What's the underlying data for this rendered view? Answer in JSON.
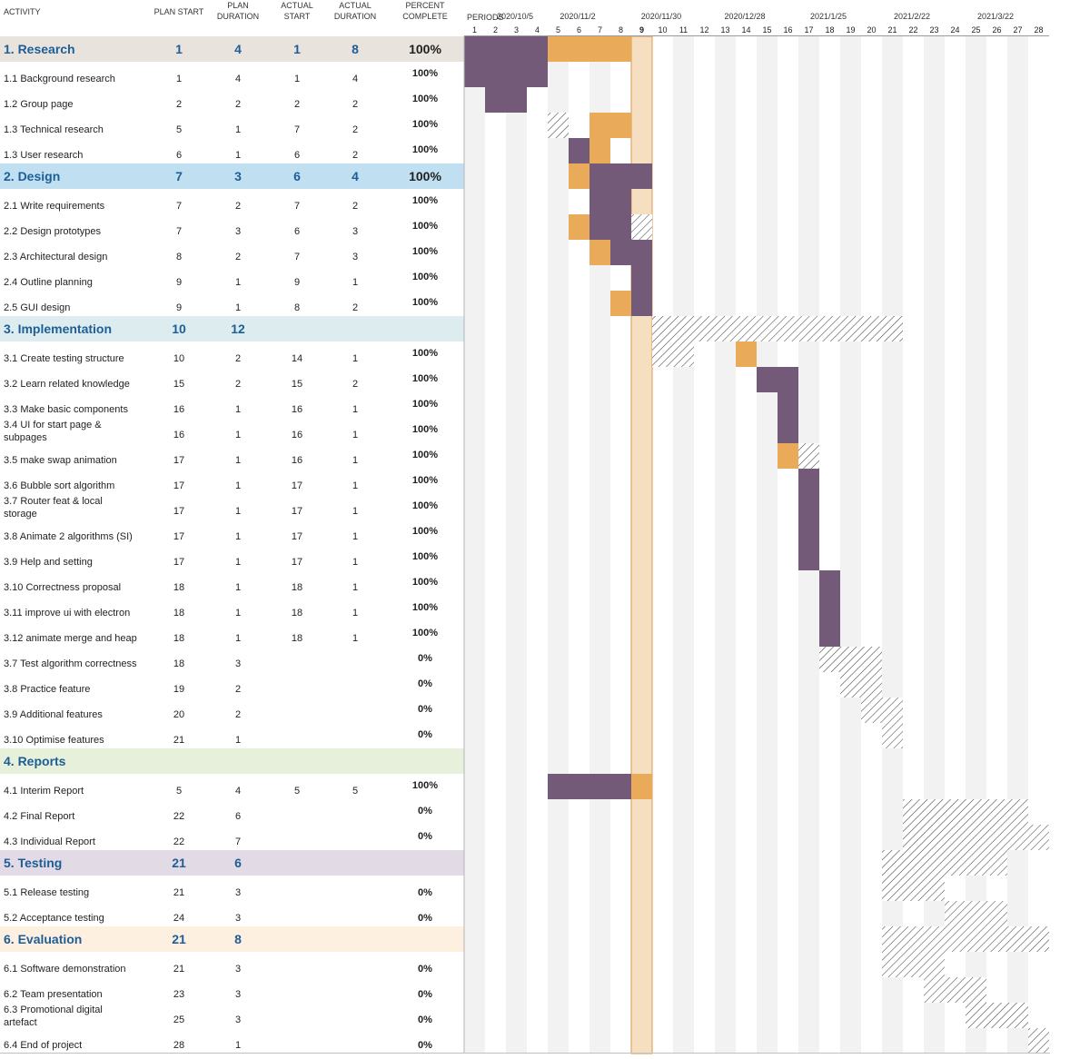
{
  "headers": {
    "activity": "ACTIVITY",
    "plan_start": "PLAN START",
    "plan_duration": [
      "PLAN",
      "DURATION"
    ],
    "actual_start": [
      "ACTUAL",
      "START"
    ],
    "actual_duration": [
      "ACTUAL",
      "DURATION"
    ],
    "percent_complete": [
      "PERCENT",
      "COMPLETE"
    ],
    "periods": "PERIODS"
  },
  "colors": {
    "actual_bar": "#725a78",
    "plan_bar": "#e9aa59",
    "current_period": "#f6dfc1",
    "current_period_border": "#d99a50",
    "stripe": "#f2f2f2",
    "hatch": "#444444"
  },
  "chart_data": {
    "type": "gantt",
    "periods": [
      1,
      2,
      3,
      4,
      5,
      6,
      7,
      8,
      9,
      10,
      11,
      12,
      13,
      14,
      15,
      16,
      17,
      18,
      19,
      20,
      21,
      22,
      23,
      24,
      25,
      26,
      27,
      28
    ],
    "current_period": 9,
    "date_labels": [
      {
        "period": 3,
        "label": "2020/10/5"
      },
      {
        "period": 6,
        "label": "2020/11/2"
      },
      {
        "period": 10,
        "label": "2020/11/30"
      },
      {
        "period": 14,
        "label": "2020/12/28"
      },
      {
        "period": 18,
        "label": "2021/1/25"
      },
      {
        "period": 22,
        "label": "2021/2/22"
      },
      {
        "period": 26,
        "label": "2021/3/22"
      }
    ],
    "rows": [
      {
        "name": "1. Research",
        "group": true,
        "band": "#e8e3dd",
        "plan_start": "1",
        "plan_duration": "4",
        "actual_start": "1",
        "actual_duration": "8",
        "pct": "100%"
      },
      {
        "name": "1.1 Background research",
        "plan_start": "1",
        "plan_duration": "4",
        "actual_start": "1",
        "actual_duration": "4",
        "pct": "100%"
      },
      {
        "name": "1.2 Group page",
        "plan_start": "2",
        "plan_duration": "2",
        "actual_start": "2",
        "actual_duration": "2",
        "pct": "100%"
      },
      {
        "name": "1.3 Technical research",
        "plan_start": "5",
        "plan_duration": "1",
        "actual_start": "7",
        "actual_duration": "2",
        "pct": "100%"
      },
      {
        "name": "1.3 User research",
        "plan_start": "6",
        "plan_duration": "1",
        "actual_start": "6",
        "actual_duration": "2",
        "pct": "100%"
      },
      {
        "name": "2. Design",
        "group": true,
        "band": "#c0e0f2",
        "plan_start": "7",
        "plan_duration": "3",
        "actual_start": "6",
        "actual_duration": "4",
        "pct": "100%"
      },
      {
        "name": "2.1 Write requirements",
        "plan_start": "7",
        "plan_duration": "2",
        "actual_start": "7",
        "actual_duration": "2",
        "pct": "100%"
      },
      {
        "name": "2.2 Design prototypes",
        "plan_start": "7",
        "plan_duration": "3",
        "actual_start": "6",
        "actual_duration": "3",
        "pct": "100%"
      },
      {
        "name": "2.3 Architectural design",
        "plan_start": "8",
        "plan_duration": "2",
        "actual_start": "7",
        "actual_duration": "3",
        "pct": "100%"
      },
      {
        "name": "2.4 Outline planning",
        "plan_start": "9",
        "plan_duration": "1",
        "actual_start": "9",
        "actual_duration": "1",
        "pct": "100%"
      },
      {
        "name": "2.5 GUI design",
        "plan_start": "9",
        "plan_duration": "1",
        "actual_start": "8",
        "actual_duration": "2",
        "pct": "100%"
      },
      {
        "name": "3. Implementation",
        "group": true,
        "band": "#ddecee",
        "plan_start": "10",
        "plan_duration": "12",
        "actual_start": "",
        "actual_duration": "",
        "pct": ""
      },
      {
        "name": "3.1 Create testing structure",
        "plan_start": "10",
        "plan_duration": "2",
        "actual_start": "14",
        "actual_duration": "1",
        "pct": "100%"
      },
      {
        "name": "3.2 Learn related knowledge",
        "plan_start": "15",
        "plan_duration": "2",
        "actual_start": "15",
        "actual_duration": "2",
        "pct": "100%"
      },
      {
        "name": "3.3 Make basic components",
        "plan_start": "16",
        "plan_duration": "1",
        "actual_start": "16",
        "actual_duration": "1",
        "pct": "100%"
      },
      {
        "name": "3.4 UI for start page & subpages",
        "plan_start": "16",
        "plan_duration": "1",
        "actual_start": "16",
        "actual_duration": "1",
        "pct": "100%"
      },
      {
        "name": "3.5 make swap animation",
        "plan_start": "17",
        "plan_duration": "1",
        "actual_start": "16",
        "actual_duration": "1",
        "pct": "100%"
      },
      {
        "name": "3.6 Bubble sort algorithm",
        "plan_start": "17",
        "plan_duration": "1",
        "actual_start": "17",
        "actual_duration": "1",
        "pct": "100%"
      },
      {
        "name": "3.7 Router feat & local storage",
        "plan_start": "17",
        "plan_duration": "1",
        "actual_start": "17",
        "actual_duration": "1",
        "pct": "100%"
      },
      {
        "name": "3.8 Animate 2 algorithms (SI)",
        "plan_start": "17",
        "plan_duration": "1",
        "actual_start": "17",
        "actual_duration": "1",
        "pct": "100%"
      },
      {
        "name": "3.9 Help and setting",
        "plan_start": "17",
        "plan_duration": "1",
        "actual_start": "17",
        "actual_duration": "1",
        "pct": "100%"
      },
      {
        "name": "3.10 Correctness proposal",
        "plan_start": "18",
        "plan_duration": "1",
        "actual_start": "18",
        "actual_duration": "1",
        "pct": "100%"
      },
      {
        "name": "3.11 improve ui with electron",
        "plan_start": "18",
        "plan_duration": "1",
        "actual_start": "18",
        "actual_duration": "1",
        "pct": "100%"
      },
      {
        "name": "3.12 animate merge and heap",
        "plan_start": "18",
        "plan_duration": "1",
        "actual_start": "18",
        "actual_duration": "1",
        "pct": "100%"
      },
      {
        "name": "3.7 Test algorithm correctness",
        "plan_start": "18",
        "plan_duration": "3",
        "actual_start": "",
        "actual_duration": "",
        "pct": "0%"
      },
      {
        "name": "3.8 Practice feature",
        "plan_start": "19",
        "plan_duration": "2",
        "actual_start": "",
        "actual_duration": "",
        "pct": "0%"
      },
      {
        "name": "3.9 Additional features",
        "plan_start": "20",
        "plan_duration": "2",
        "actual_start": "",
        "actual_duration": "",
        "pct": "0%"
      },
      {
        "name": "3.10 Optimise features",
        "plan_start": "21",
        "plan_duration": "1",
        "actual_start": "",
        "actual_duration": "",
        "pct": "0%"
      },
      {
        "name": "4. Reports",
        "group": true,
        "band": "#e6f0da",
        "plan_start": "",
        "plan_duration": "",
        "actual_start": "",
        "actual_duration": "",
        "pct": ""
      },
      {
        "name": "4.1 Interim Report",
        "plan_start": "5",
        "plan_duration": "4",
        "actual_start": "5",
        "actual_duration": "5",
        "pct": "100%"
      },
      {
        "name": "4.2 Final Report",
        "plan_start": "22",
        "plan_duration": "6",
        "actual_start": "",
        "actual_duration": "",
        "pct": "0%"
      },
      {
        "name": "4.3 Individual Report",
        "plan_start": "22",
        "plan_duration": "7",
        "actual_start": "",
        "actual_duration": "",
        "pct": "0%"
      },
      {
        "name": "5. Testing",
        "group": true,
        "band": "#e2dbe6",
        "plan_start": "21",
        "plan_duration": "6",
        "actual_start": "",
        "actual_duration": "",
        "pct": ""
      },
      {
        "name": "5.1 Release testing",
        "plan_start": "21",
        "plan_duration": "3",
        "actual_start": "",
        "actual_duration": "",
        "pct": "0%",
        "pct_low": true
      },
      {
        "name": "5.2 Acceptance testing",
        "plan_start": "24",
        "plan_duration": "3",
        "actual_start": "",
        "actual_duration": "",
        "pct": "0%",
        "pct_low": true
      },
      {
        "name": "6. Evaluation",
        "group": true,
        "band": "#fdf0e0",
        "plan_start": "21",
        "plan_duration": "8",
        "actual_start": "",
        "actual_duration": "",
        "pct": ""
      },
      {
        "name": "6.1 Software demonstration",
        "plan_start": "21",
        "plan_duration": "3",
        "actual_start": "",
        "actual_duration": "",
        "pct": "0%",
        "pct_low": true
      },
      {
        "name": "6.2 Team presentation",
        "plan_start": "23",
        "plan_duration": "3",
        "actual_start": "",
        "actual_duration": "",
        "pct": "0%",
        "pct_low": true
      },
      {
        "name": "6.3 Promotional digital artefact",
        "plan_start": "25",
        "plan_duration": "3",
        "actual_start": "",
        "actual_duration": "",
        "pct": "0%",
        "pct_low": true
      },
      {
        "name": "6.4 End of project",
        "plan_start": "28",
        "plan_duration": "1",
        "actual_start": "",
        "actual_duration": "",
        "pct": "0%",
        "pct_low": true
      }
    ]
  }
}
